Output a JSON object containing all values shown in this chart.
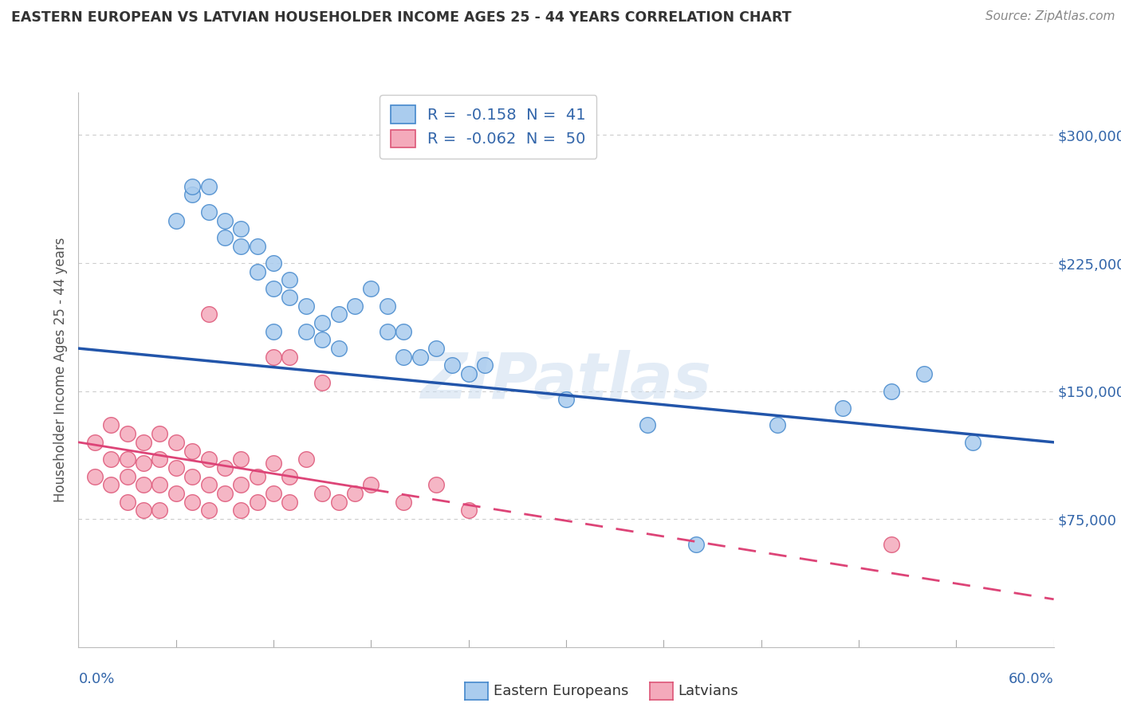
{
  "title": "EASTERN EUROPEAN VS LATVIAN HOUSEHOLDER INCOME AGES 25 - 44 YEARS CORRELATION CHART",
  "source": "Source: ZipAtlas.com",
  "ylabel": "Householder Income Ages 25 - 44 years",
  "xlim": [
    0.0,
    0.6
  ],
  "ylim": [
    0,
    325000
  ],
  "yticks": [
    75000,
    150000,
    225000,
    300000
  ],
  "ytick_labels": [
    "$75,000",
    "$150,000",
    "$225,000",
    "$300,000"
  ],
  "watermark": "ZIPatlas",
  "legend_entries": [
    {
      "label": "R =  -0.158  N =  41",
      "color": "#aaccee"
    },
    {
      "label": "R =  -0.062  N =  50",
      "color": "#f4aabb"
    }
  ],
  "legend_text_color": "#3366aa",
  "ee_x": [
    0.07,
    0.08,
    0.09,
    0.09,
    0.1,
    0.1,
    0.11,
    0.11,
    0.12,
    0.12,
    0.13,
    0.13,
    0.14,
    0.14,
    0.15,
    0.15,
    0.16,
    0.17,
    0.18,
    0.19,
    0.2,
    0.2,
    0.21,
    0.22,
    0.23,
    0.24,
    0.25,
    0.3,
    0.35,
    0.38,
    0.43,
    0.47,
    0.5,
    0.52,
    0.55,
    0.06,
    0.07,
    0.08,
    0.12,
    0.16,
    0.19
  ],
  "ee_y": [
    265000,
    255000,
    250000,
    240000,
    245000,
    235000,
    235000,
    220000,
    225000,
    210000,
    215000,
    205000,
    200000,
    185000,
    190000,
    180000,
    175000,
    200000,
    210000,
    185000,
    185000,
    170000,
    170000,
    175000,
    165000,
    160000,
    165000,
    145000,
    130000,
    60000,
    130000,
    140000,
    150000,
    160000,
    120000,
    250000,
    270000,
    270000,
    185000,
    195000,
    200000
  ],
  "lv_x": [
    0.01,
    0.01,
    0.02,
    0.02,
    0.02,
    0.03,
    0.03,
    0.03,
    0.03,
    0.04,
    0.04,
    0.04,
    0.04,
    0.05,
    0.05,
    0.05,
    0.05,
    0.06,
    0.06,
    0.06,
    0.07,
    0.07,
    0.07,
    0.08,
    0.08,
    0.08,
    0.09,
    0.09,
    0.1,
    0.1,
    0.1,
    0.11,
    0.11,
    0.12,
    0.12,
    0.13,
    0.13,
    0.14,
    0.15,
    0.16,
    0.17,
    0.18,
    0.2,
    0.22,
    0.24,
    0.08,
    0.12,
    0.15,
    0.5,
    0.13
  ],
  "lv_y": [
    120000,
    100000,
    130000,
    110000,
    95000,
    125000,
    110000,
    100000,
    85000,
    120000,
    108000,
    95000,
    80000,
    125000,
    110000,
    95000,
    80000,
    120000,
    105000,
    90000,
    115000,
    100000,
    85000,
    110000,
    95000,
    80000,
    105000,
    90000,
    110000,
    95000,
    80000,
    100000,
    85000,
    108000,
    90000,
    100000,
    85000,
    110000,
    90000,
    85000,
    90000,
    95000,
    85000,
    95000,
    80000,
    195000,
    170000,
    155000,
    60000,
    170000
  ],
  "ee_color": "#aaccee",
  "ee_edge_color": "#4488cc",
  "lv_color": "#f4aabb",
  "lv_edge_color": "#dd5577",
  "ee_line_color": "#2255aa",
  "lv_line_color": "#dd4477",
  "background_color": "#ffffff",
  "grid_color": "#cccccc",
  "title_color": "#333333",
  "axis_label_color": "#3366aa",
  "ee_line_y0": 175000,
  "ee_line_y1": 120000,
  "lv_line_y0": 120000,
  "lv_line_y1": 28000
}
